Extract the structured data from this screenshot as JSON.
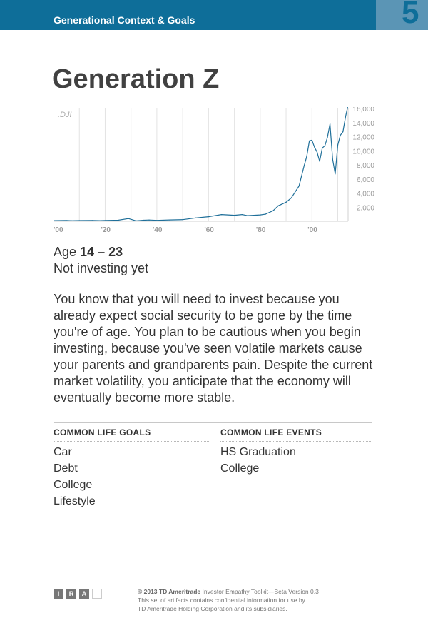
{
  "header": {
    "section_title": "Generational Context & Goals",
    "page_number": "5"
  },
  "page_title": "Generation Z",
  "chart_data": {
    "type": "line",
    "title": "",
    "series_label": ".DJI",
    "x_ticks": [
      "'00",
      "'20",
      "'40",
      "'60",
      "'80",
      "'00"
    ],
    "y_ticks": [
      "16,000",
      "14,000",
      "12,000",
      "10,000",
      "8,000",
      "6,000",
      "4,000",
      "2,000"
    ],
    "ylim": [
      0,
      16000
    ],
    "xlim": [
      1900,
      2014
    ],
    "grid": "vertical",
    "series": [
      {
        "x": [
          1900,
          1905,
          1907,
          1910,
          1915,
          1918,
          1920,
          1925,
          1929,
          1932,
          1935,
          1937,
          1940,
          1945,
          1950,
          1955,
          1960,
          1965,
          1970,
          1973,
          1975,
          1980,
          1982,
          1985,
          1987,
          1990,
          1992,
          1995,
          1997,
          1998,
          1999,
          2000,
          2001,
          2002,
          2003,
          2004,
          2005,
          2006,
          2007,
          2008,
          2009,
          2010,
          2011,
          2012,
          2013,
          2014
        ],
        "y": [
          90,
          110,
          80,
          100,
          120,
          90,
          110,
          150,
          380,
          60,
          150,
          180,
          130,
          190,
          230,
          480,
          650,
          950,
          850,
          950,
          800,
          900,
          1000,
          1500,
          2200,
          2700,
          3300,
          5000,
          7900,
          9200,
          11400,
          11500,
          10500,
          9800,
          8500,
          10400,
          10700,
          11900,
          13800,
          8800,
          6700,
          10800,
          12200,
          12700,
          14800,
          16500
        ]
      }
    ]
  },
  "profile": {
    "age_label": "Age",
    "age_range": "14 – 23",
    "status": "Not investing yet"
  },
  "description": "You know that you will need to invest because you already expect social security to be gone by the time you're of age. You plan to be cautious when you begin investing, because you've seen volatile markets cause your parents and grandparents pain. Despite the current market volatility, you anticipate that the economy will eventually become more stable.",
  "goals": {
    "heading": "COMMON LIFE GOALS",
    "items": [
      "Car",
      "Debt",
      "College",
      "Lifestyle"
    ]
  },
  "events": {
    "heading": "COMMON LIFE EVENTS",
    "items": [
      "HS Graduation",
      "College"
    ]
  },
  "footer": {
    "logo_letters": [
      "I",
      "R",
      "A"
    ],
    "copyright_bold": "© 2013 TD Ameritrade",
    "copyright_rest": " Investor Empathy Toolkit—Beta Version 0.3",
    "line2": "This set of artifacts contains confidential information for use by",
    "line3": "TD Ameritrade Holding Corporation and its subsidiaries."
  },
  "colors": {
    "header_blue": "#0e6e99",
    "badge_blue": "#5b95b5",
    "line_blue": "#1f6f99"
  }
}
